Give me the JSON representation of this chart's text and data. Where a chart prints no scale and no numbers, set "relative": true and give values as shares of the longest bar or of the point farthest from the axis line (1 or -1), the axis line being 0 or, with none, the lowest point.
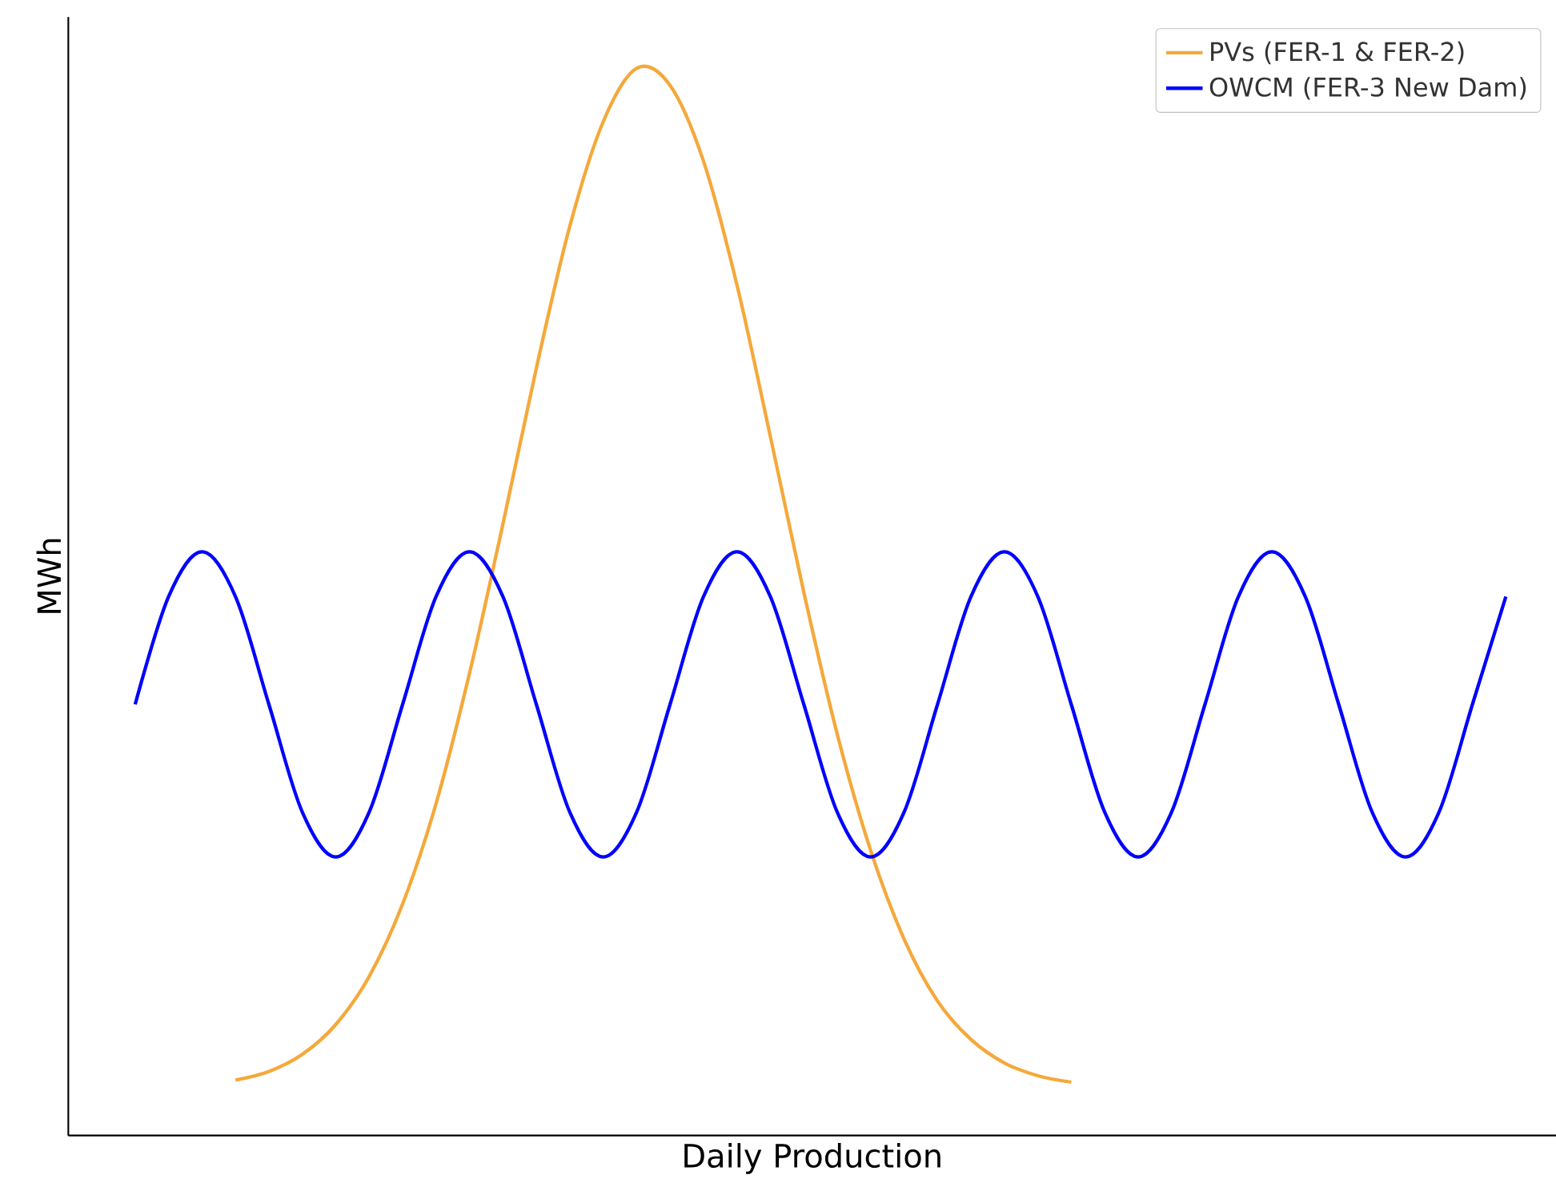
{
  "chart_data": {
    "type": "line",
    "xlabel": "Daily Production",
    "ylabel": "MWh",
    "relative": true,
    "legend": "top right",
    "categories": [
      null,
      null,
      null,
      null,
      null,
      null,
      null,
      null,
      null,
      null,
      null,
      null,
      null,
      null,
      null,
      null,
      null,
      null,
      null,
      null,
      null,
      null,
      null,
      null,
      null,
      null,
      null,
      null,
      null,
      null,
      null,
      null,
      null,
      null,
      null,
      null,
      null,
      null,
      null,
      null,
      null,
      null
    ],
    "series": [
      {
        "name": "PVs (FER-1 & FER-2)",
        "color": "#f5a83a",
        "values": [
          null,
          null,
          null,
          0.052,
          0.06,
          0.076,
          0.104,
          0.149,
          0.217,
          0.311,
          0.433,
          0.573,
          0.719,
          0.852,
          0.95,
          1.0,
          0.984,
          0.913,
          0.797,
          0.655,
          0.509,
          0.376,
          0.267,
          0.184,
          0.126,
          0.09,
          0.068,
          0.056,
          0.05,
          null,
          null,
          null,
          null,
          null,
          null,
          null,
          null,
          null,
          null,
          null,
          null,
          null
        ]
      },
      {
        "name": "OWCM (FER-3 New Dam)",
        "color": "#0000ff",
        "values": [
          0.404,
          0.505,
          0.547,
          0.505,
          0.404,
          0.303,
          0.261,
          0.303,
          0.404,
          0.505,
          0.547,
          0.505,
          0.404,
          0.303,
          0.261,
          0.303,
          0.404,
          0.505,
          0.547,
          0.505,
          0.404,
          0.303,
          0.261,
          0.303,
          0.404,
          0.505,
          0.547,
          0.505,
          0.404,
          0.303,
          0.261,
          0.303,
          0.404,
          0.505,
          0.547,
          0.505,
          0.404,
          0.303,
          0.261,
          0.303,
          0.404,
          0.505
        ]
      }
    ]
  }
}
